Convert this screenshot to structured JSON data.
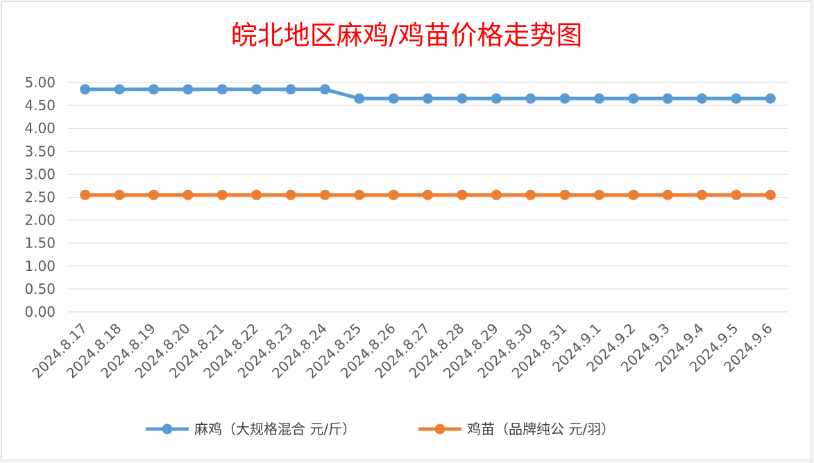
{
  "chart_data": {
    "type": "line",
    "title": "皖北地区麻鸡/鸡苗价格走势图",
    "xlabel": "",
    "ylabel": "",
    "categories": [
      "2024.8.17",
      "2024.8.18",
      "2024.8.19",
      "2024.8.20",
      "2024.8.21",
      "2024.8.22",
      "2024.8.23",
      "2024.8.24",
      "2024.8.25",
      "2024.8.26",
      "2024.8.27",
      "2024.8.28",
      "2024.8.29",
      "2024.8.30",
      "2024.8.31",
      "2024.9.1",
      "2024.9.2",
      "2024.9.3",
      "2024.9.4",
      "2024.9.5",
      "2024.9.6"
    ],
    "ylim": [
      0,
      5
    ],
    "yticks": [
      "0.00",
      "0.50",
      "1.00",
      "1.50",
      "2.00",
      "2.50",
      "3.00",
      "3.50",
      "4.00",
      "4.50",
      "5.00"
    ],
    "grid": true,
    "legend_position": "bottom",
    "series": [
      {
        "name": "麻鸡（大规格混合 元/斤）",
        "color": "#5b9bd5",
        "values": [
          4.85,
          4.85,
          4.85,
          4.85,
          4.85,
          4.85,
          4.85,
          4.85,
          4.65,
          4.65,
          4.65,
          4.65,
          4.65,
          4.65,
          4.65,
          4.65,
          4.65,
          4.65,
          4.65,
          4.65,
          4.65
        ]
      },
      {
        "name": "鸡苗（品牌纯公 元/羽）",
        "color": "#ed7d31",
        "values": [
          2.55,
          2.55,
          2.55,
          2.55,
          2.55,
          2.55,
          2.55,
          2.55,
          2.55,
          2.55,
          2.55,
          2.55,
          2.55,
          2.55,
          2.55,
          2.55,
          2.55,
          2.55,
          2.55,
          2.55,
          2.55
        ]
      }
    ]
  }
}
